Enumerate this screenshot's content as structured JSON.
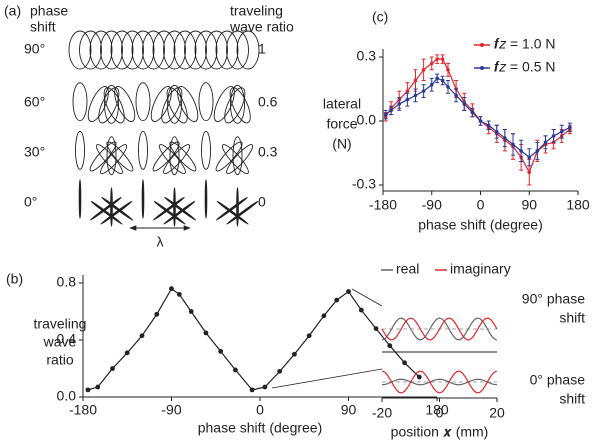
{
  "panel_a": {
    "label": "(a)",
    "left_header": [
      "phase",
      "shift"
    ],
    "right_header": [
      "traveling",
      "wave ratio"
    ],
    "rows": [
      {
        "phase": "90°",
        "ratio": 1
      },
      {
        "phase": "60°",
        "ratio": 0.6
      },
      {
        "phase": "30°",
        "ratio": 0.3
      },
      {
        "phase": "0°",
        "ratio": 0
      }
    ],
    "wavelength": "λ"
  },
  "chart_data": [
    {
      "type": "line",
      "label": "(b)",
      "xlabel": "phase shift (degree)",
      "ylabel": [
        "traveling",
        "wave",
        "ratio"
      ],
      "x": [
        -175,
        -165,
        -150,
        -135,
        -120,
        -105,
        -90,
        -82,
        -70,
        -55,
        -40,
        -25,
        -8,
        5,
        20,
        35,
        50,
        65,
        78,
        90,
        103,
        118,
        132,
        147,
        162
      ],
      "values": [
        0.05,
        0.07,
        0.2,
        0.31,
        0.43,
        0.58,
        0.76,
        0.72,
        0.6,
        0.45,
        0.32,
        0.19,
        0.05,
        0.07,
        0.18,
        0.3,
        0.43,
        0.57,
        0.68,
        0.74,
        0.61,
        0.48,
        0.36,
        0.24,
        0.14
      ],
      "color": "#222222",
      "markers": true,
      "xlim": [
        -180,
        180
      ],
      "xticks": [
        -180,
        -90,
        0,
        90,
        180
      ],
      "ylim": [
        0,
        0.8
      ],
      "yticks": [
        {
          "value": 0,
          "label": "0.0"
        },
        0.4,
        0.8
      ]
    },
    {
      "type": "line",
      "label": "(c)",
      "xlabel": "phase shift (degree)",
      "ylabel": [
        "lateral",
        "force",
        "(N)"
      ],
      "x": [
        -175,
        -165,
        -150,
        -135,
        -120,
        -105,
        -90,
        -80,
        -70,
        -60,
        -45,
        -30,
        -15,
        0,
        15,
        30,
        45,
        60,
        75,
        90,
        105,
        120,
        135,
        150,
        165
      ],
      "series": [
        {
          "name": "𝒇𝑧 = 1.0 N",
          "color": "#e3262d",
          "values": [
            0.02,
            0.06,
            0.1,
            0.14,
            0.19,
            0.24,
            0.27,
            0.29,
            0.29,
            0.24,
            0.15,
            0.09,
            0.05,
            0.0,
            -0.03,
            -0.06,
            -0.09,
            -0.12,
            -0.17,
            -0.24,
            -0.14,
            -0.11,
            -0.1,
            -0.07,
            -0.04
          ],
          "errors": [
            0.02,
            0.03,
            0.04,
            0.04,
            0.05,
            0.05,
            0.03,
            0.02,
            0.02,
            0.03,
            0.04,
            0.04,
            0.03,
            0.02,
            0.03,
            0.04,
            0.05,
            0.06,
            0.06,
            0.06,
            0.05,
            0.04,
            0.03,
            0.03,
            0.02
          ]
        },
        {
          "name": "𝒇𝑧 = 0.5 N",
          "color": "#2b3a98",
          "values": [
            0.03,
            0.05,
            0.08,
            0.1,
            0.12,
            0.14,
            0.17,
            0.2,
            0.19,
            0.16,
            0.12,
            0.08,
            0.04,
            0.0,
            -0.02,
            -0.05,
            -0.08,
            -0.11,
            -0.14,
            -0.17,
            -0.14,
            -0.1,
            -0.07,
            -0.05,
            -0.03
          ],
          "errors": [
            0.02,
            0.02,
            0.03,
            0.03,
            0.03,
            0.03,
            0.03,
            0.02,
            0.02,
            0.03,
            0.03,
            0.03,
            0.02,
            0.02,
            0.02,
            0.03,
            0.04,
            0.05,
            0.05,
            0.04,
            0.04,
            0.03,
            0.03,
            0.03,
            0.02
          ]
        }
      ],
      "markers": true,
      "legend": "upper right",
      "xlim": [
        -180,
        180
      ],
      "xticks": [
        -180,
        -90,
        0,
        90,
        180
      ],
      "ylim": [
        -0.3,
        0.3
      ],
      "yticks": [
        -0.3,
        {
          "value": 0,
          "label": "0.0"
        },
        0.3
      ]
    },
    {
      "type": "line",
      "title": [
        "90° phase",
        "shift"
      ],
      "legend": "top",
      "x": [
        -20,
        -19,
        -18,
        -17,
        -16,
        -15,
        -14,
        -13,
        -12,
        -11,
        -10,
        -9,
        -8,
        -7,
        -6,
        -5,
        -4,
        -3,
        -2,
        -1,
        0,
        1,
        2,
        3,
        4,
        5,
        6,
        7,
        8,
        9,
        10,
        11,
        12,
        13,
        14,
        15,
        16,
        17,
        18,
        19,
        20
      ],
      "series": [
        {
          "name": "real",
          "color": "#666666",
          "values": [
            -1,
            -0.89,
            -0.59,
            -0.16,
            0.31,
            0.71,
            0.95,
            0.99,
            0.81,
            0.45,
            0,
            -0.45,
            -0.81,
            -0.99,
            -0.95,
            -0.71,
            -0.31,
            0.16,
            0.59,
            0.89,
            1,
            0.89,
            0.59,
            0.16,
            -0.31,
            -0.71,
            -0.95,
            -0.99,
            -0.81,
            -0.45,
            0,
            0.45,
            0.81,
            0.99,
            0.95,
            0.71,
            0.31,
            -0.16,
            -0.59,
            -0.89,
            -1
          ]
        },
        {
          "name": "imaginary",
          "color": "#e3262d",
          "values": [
            0,
            -0.45,
            -0.81,
            -0.99,
            -0.95,
            -0.71,
            -0.31,
            0.16,
            0.59,
            0.89,
            1,
            0.89,
            0.59,
            0.16,
            -0.31,
            -0.71,
            -0.95,
            -0.99,
            -0.81,
            -0.45,
            0,
            0.45,
            0.81,
            0.99,
            0.95,
            0.71,
            0.31,
            -0.16,
            -0.59,
            -0.89,
            -1,
            -0.89,
            -0.59,
            -0.16,
            0.31,
            0.71,
            0.95,
            0.99,
            0.81,
            0.45,
            0
          ]
        }
      ],
      "xlim": [
        -20,
        20
      ]
    },
    {
      "type": "line",
      "title": [
        "0° phase",
        "shift"
      ],
      "xlabel": "position 𝒙 (mm)",
      "x": [
        -20,
        -19,
        -18,
        -17,
        -16,
        -15,
        -14,
        -13,
        -12,
        -11,
        -10,
        -9,
        -8,
        -7,
        -6,
        -5,
        -4,
        -3,
        -2,
        -1,
        0,
        1,
        2,
        3,
        4,
        5,
        6,
        7,
        8,
        9,
        10,
        11,
        12,
        13,
        14,
        15,
        16,
        17,
        18,
        19,
        20
      ],
      "series": [
        {
          "color": "#666666",
          "values": [
            -0.25,
            -0.22,
            -0.15,
            -0.04,
            0.08,
            0.18,
            0.24,
            0.25,
            0.2,
            0.11,
            0,
            -0.11,
            -0.2,
            -0.25,
            -0.24,
            -0.18,
            -0.08,
            0.04,
            0.15,
            0.22,
            0.25,
            0.22,
            0.15,
            0.04,
            -0.08,
            -0.18,
            -0.24,
            -0.25,
            -0.2,
            -0.11,
            0,
            0.11,
            0.2,
            0.25,
            0.24,
            0.18,
            0.08,
            -0.04,
            -0.15,
            -0.22,
            -0.25
          ]
        },
        {
          "color": "#e3262d",
          "values": [
            1,
            0.89,
            0.59,
            0.16,
            -0.31,
            -0.71,
            -0.95,
            -0.99,
            -0.81,
            -0.45,
            0,
            0.45,
            0.81,
            0.99,
            0.95,
            0.71,
            0.31,
            -0.16,
            -0.59,
            -0.89,
            -1,
            -0.89,
            -0.59,
            -0.16,
            0.31,
            0.71,
            0.95,
            0.99,
            0.81,
            0.45,
            0,
            -0.45,
            -0.81,
            -0.99,
            -0.95,
            -0.71,
            -0.31,
            0.16,
            0.59,
            0.89,
            1
          ]
        }
      ],
      "xlim": [
        -20,
        20
      ],
      "xticks": [
        -20,
        0,
        20
      ]
    }
  ]
}
